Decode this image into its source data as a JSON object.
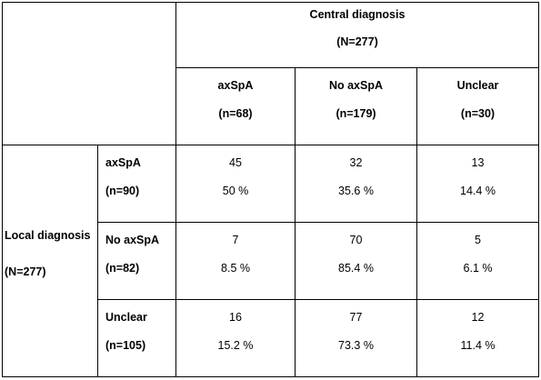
{
  "table": {
    "central_header": {
      "line1": "Central diagnosis",
      "line2": "(N=277)"
    },
    "columns": [
      {
        "label": "axSpA",
        "count": "(n=68)"
      },
      {
        "label": "No axSpA",
        "count": "(n=179)"
      },
      {
        "label": "Unclear",
        "count": "(n=30)"
      }
    ],
    "local_header": {
      "line1": "Local diagnosis",
      "line2": "(N=277)"
    },
    "rows": [
      {
        "label": "axSpA",
        "count": "(n=90)",
        "cells": [
          {
            "n": "45",
            "pct": "50 %"
          },
          {
            "n": "32",
            "pct": "35.6 %"
          },
          {
            "n": "13",
            "pct": "14.4 %"
          }
        ]
      },
      {
        "label": "No axSpA",
        "count": "(n=82)",
        "cells": [
          {
            "n": "7",
            "pct": "8.5 %"
          },
          {
            "n": "70",
            "pct": "85.4 %"
          },
          {
            "n": "5",
            "pct": "6.1 %"
          }
        ]
      },
      {
        "label": "Unclear",
        "count": "(n=105)",
        "cells": [
          {
            "n": "16",
            "pct": "15.2 %"
          },
          {
            "n": "77",
            "pct": "73.3 %"
          },
          {
            "n": "12",
            "pct": "11.4 %"
          }
        ]
      }
    ]
  }
}
